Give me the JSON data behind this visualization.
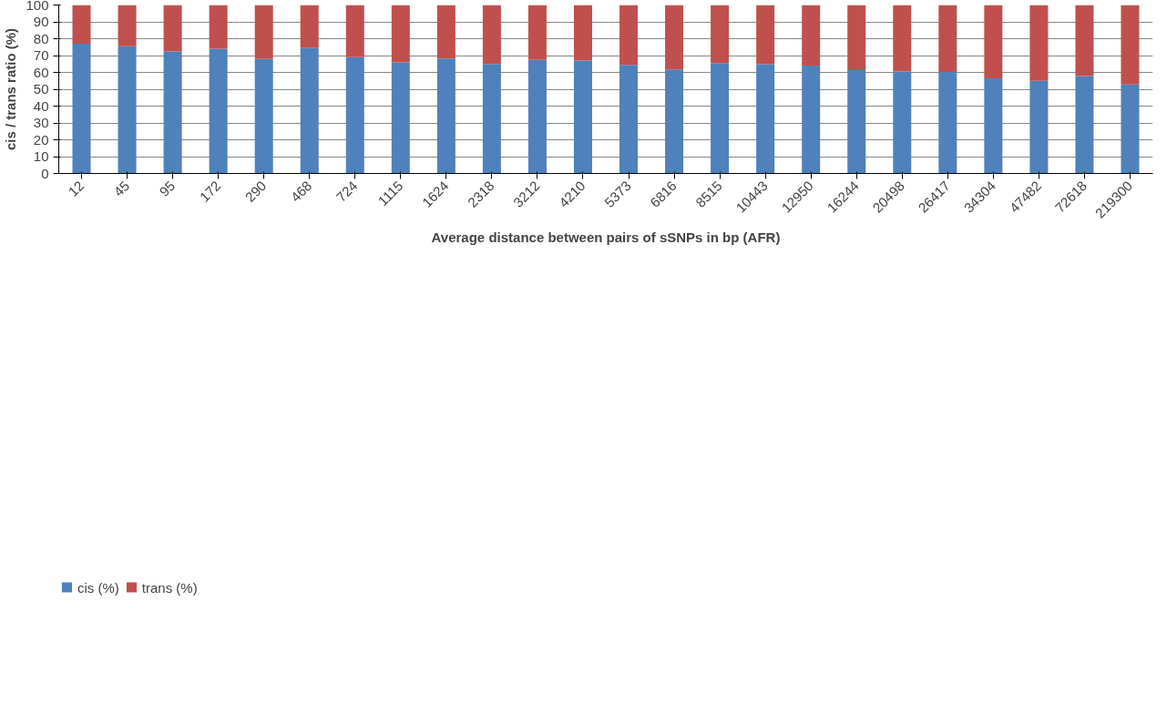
{
  "chart_data": {
    "type": "bar",
    "stacked": true,
    "ylabel": "cis / trans ratio (%)",
    "xlabel": "Average distance between pairs of sSNPs in bp (AFR)",
    "categories": [
      "12",
      "45",
      "95",
      "172",
      "290",
      "468",
      "724",
      "1115",
      "1624",
      "2318",
      "3212",
      "4210",
      "5373",
      "6816",
      "8515",
      "10443",
      "12950",
      "16244",
      "20498",
      "26417",
      "34304",
      "47482",
      "72618",
      "219300"
    ],
    "series": [
      {
        "name": "cis (%)",
        "color": "#4f81bd",
        "values": [
          77,
          75.5,
          72.5,
          74,
          68,
          74.5,
          69,
          66,
          68.3,
          65,
          67.5,
          67,
          64.5,
          61.8,
          65.5,
          64.8,
          64,
          61.3,
          60.5,
          60.3,
          56.5,
          55,
          57.8,
          52.8
        ]
      },
      {
        "name": "trans (%)",
        "color": "#c0504d",
        "values": [
          23,
          24.5,
          27.5,
          26,
          32,
          25.5,
          31,
          34,
          31.7,
          35,
          32.5,
          33,
          35.5,
          38.2,
          34.5,
          35.2,
          36,
          38.7,
          39.5,
          39.7,
          43.5,
          45,
          42.2,
          47.2
        ]
      }
    ],
    "ylim": [
      0,
      100
    ],
    "yticks": [
      0,
      10,
      20,
      30,
      40,
      50,
      60,
      70,
      80,
      90,
      100
    ],
    "grid": "y",
    "legend": "bottom left"
  }
}
